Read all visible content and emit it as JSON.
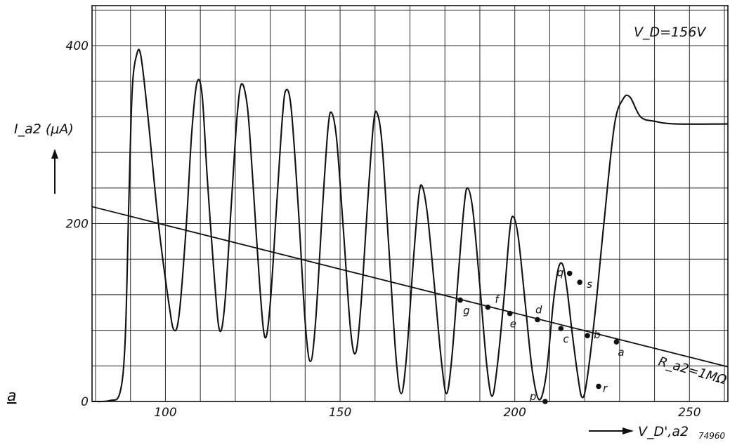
{
  "chart_data": {
    "type": "line",
    "title": "",
    "xlabel": "V_D',a2",
    "ylabel": "I_a2 (μA)",
    "xlim": [
      79,
      261
    ],
    "ylim": [
      0,
      445
    ],
    "x_ticks": [
      "100",
      "150",
      "200",
      "250"
    ],
    "y_ticks": [
      "0",
      "200",
      "400"
    ],
    "grid": true,
    "annotations": {
      "condition": "V_D=156V",
      "load_line": "R_a2=1MΩ",
      "panel_label": "a",
      "figure_number": "74960"
    },
    "series": [
      {
        "kind": "curve",
        "points": [
          [
            79,
            0
          ],
          [
            84,
            1
          ],
          [
            87,
            10
          ],
          [
            88.5,
            70
          ],
          [
            89.5,
            220
          ],
          [
            90.5,
            350
          ],
          [
            91.8,
            390
          ],
          [
            93,
            388
          ],
          [
            95,
            320
          ],
          [
            98,
            200
          ],
          [
            101,
            110
          ],
          [
            102.5,
            80
          ],
          [
            104,
            100
          ],
          [
            106,
            200
          ],
          [
            107.5,
            300
          ],
          [
            109,
            358
          ],
          [
            110.5,
            345
          ],
          [
            112,
            250
          ],
          [
            114,
            140
          ],
          [
            115.5,
            80
          ],
          [
            117,
            110
          ],
          [
            119,
            230
          ],
          [
            120.5,
            320
          ],
          [
            121.8,
            357
          ],
          [
            123.5,
            330
          ],
          [
            125,
            250
          ],
          [
            127,
            130
          ],
          [
            128.5,
            72
          ],
          [
            130,
            110
          ],
          [
            132,
            230
          ],
          [
            133.5,
            320
          ],
          [
            134.5,
            350
          ],
          [
            136,
            330
          ],
          [
            138,
            220
          ],
          [
            140,
            90
          ],
          [
            141.5,
            45
          ],
          [
            143,
            90
          ],
          [
            145,
            220
          ],
          [
            146.5,
            305
          ],
          [
            147.5,
            325
          ],
          [
            149,
            295
          ],
          [
            151,
            190
          ],
          [
            153,
            80
          ],
          [
            154.5,
            55
          ],
          [
            156,
            110
          ],
          [
            158,
            230
          ],
          [
            159.5,
            310
          ],
          [
            160.5,
            325
          ],
          [
            162,
            290
          ],
          [
            164,
            170
          ],
          [
            166,
            50
          ],
          [
            167.5,
            9
          ],
          [
            169,
            50
          ],
          [
            171,
            160
          ],
          [
            172.5,
            230
          ],
          [
            173.5,
            242
          ],
          [
            175,
            210
          ],
          [
            177,
            130
          ],
          [
            179,
            45
          ],
          [
            180.5,
            9
          ],
          [
            182,
            50
          ],
          [
            184,
            150
          ],
          [
            185.5,
            220
          ],
          [
            186.5,
            240
          ],
          [
            188,
            215
          ],
          [
            190,
            130
          ],
          [
            192,
            40
          ],
          [
            193.5,
            6
          ],
          [
            195,
            40
          ],
          [
            197,
            120
          ],
          [
            198.5,
            190
          ],
          [
            199.5,
            208
          ],
          [
            201,
            185
          ],
          [
            203,
            110
          ],
          [
            205,
            35
          ],
          [
            207,
            2
          ],
          [
            209,
            30
          ],
          [
            211,
            110
          ],
          [
            212.5,
            150
          ],
          [
            213.8,
            153
          ],
          [
            215,
            125
          ],
          [
            216.5,
            75
          ],
          [
            218,
            30
          ],
          [
            219.2,
            5
          ],
          [
            220.5,
            20
          ],
          [
            223,
            100
          ],
          [
            225.5,
            200
          ],
          [
            228.5,
            310
          ],
          [
            231,
            340
          ],
          [
            233,
            342
          ],
          [
            236,
            320
          ],
          [
            240,
            315
          ],
          [
            246,
            312
          ],
          [
            261,
            312
          ]
        ]
      },
      {
        "kind": "load_line",
        "points": [
          [
            79,
            219
          ],
          [
            261,
            39
          ]
        ]
      }
    ],
    "marked_points": [
      {
        "label": "g",
        "x": 184.4,
        "y": 114
      },
      {
        "label": "f",
        "x": 192.3,
        "y": 106
      },
      {
        "label": "e",
        "x": 198.6,
        "y": 99
      },
      {
        "label": "d",
        "x": 206.5,
        "y": 92
      },
      {
        "label": "c",
        "x": 213.2,
        "y": 82
      },
      {
        "label": "b",
        "x": 220.8,
        "y": 74
      },
      {
        "label": "a",
        "x": 229.1,
        "y": 67
      },
      {
        "label": "q",
        "x": 215.7,
        "y": 144
      },
      {
        "label": "s",
        "x": 218.6,
        "y": 134
      },
      {
        "label": "p",
        "x": 208.7,
        "y": 0
      },
      {
        "label": "r",
        "x": 224.0,
        "y": 17
      }
    ]
  }
}
